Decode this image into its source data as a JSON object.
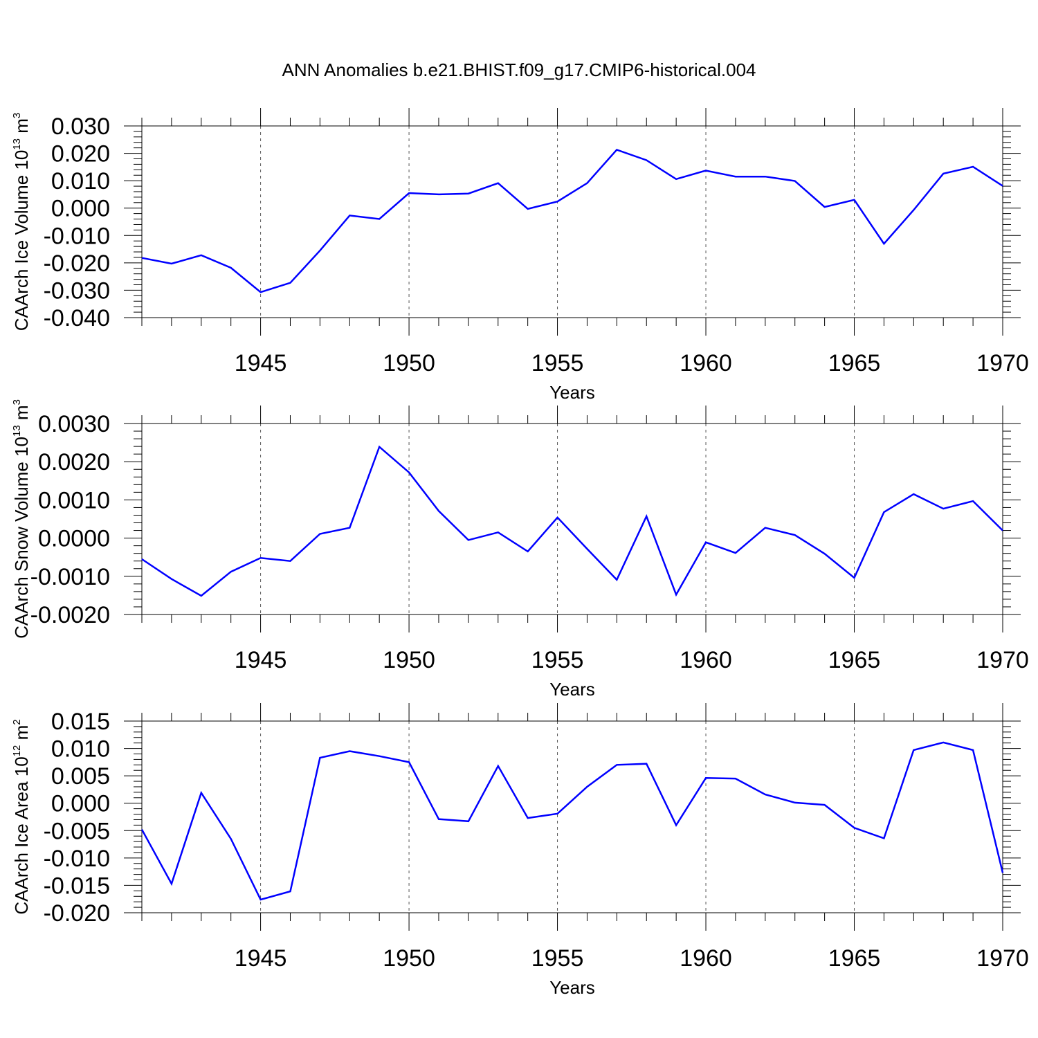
{
  "page_title": "ANN Anomalies b.e21.BHIST.f09_g17.CMIP6-historical.004",
  "colors": {
    "series": "#0000ff",
    "axis": "#000000",
    "grid": "#555555"
  },
  "chart_data": [
    {
      "type": "line",
      "title": "ANN Anomalies b.e21.BHIST.f09_g17.CMIP6-historical.004",
      "ylabel": {
        "main": "CAArch Ice Volume 10",
        "sup": "13",
        "unit": " m",
        "unit_sup": "3"
      },
      "xlabel": "Years",
      "xlim": [
        1941,
        1970
      ],
      "ylim": [
        -0.04,
        0.03
      ],
      "yticks": [
        -0.04,
        -0.03,
        -0.02,
        -0.01,
        0.0,
        0.01,
        0.02,
        0.03
      ],
      "ytick_labels": [
        "-0.040",
        "-0.030",
        "-0.020",
        "-0.010",
        "0.000",
        "0.010",
        "0.020",
        "0.030"
      ],
      "xticks": [
        1945,
        1950,
        1955,
        1960,
        1965,
        1970
      ],
      "xtick_labels": [
        "1945",
        "1950",
        "1955",
        "1960",
        "1965",
        "1970"
      ],
      "grid": "vertical dashed at major x ticks",
      "x": [
        1941,
        1942,
        1943,
        1944,
        1945,
        1946,
        1947,
        1948,
        1949,
        1950,
        1951,
        1952,
        1953,
        1954,
        1955,
        1956,
        1957,
        1958,
        1959,
        1960,
        1961,
        1962,
        1963,
        1964,
        1965,
        1966,
        1967,
        1968,
        1969,
        1970
      ],
      "values": [
        -0.0182,
        -0.0203,
        -0.0172,
        -0.0218,
        -0.0307,
        -0.0273,
        -0.0155,
        -0.0027,
        -0.004,
        0.0055,
        0.005,
        0.0053,
        0.0091,
        -0.0003,
        0.0024,
        0.0091,
        0.0213,
        0.0175,
        0.0106,
        0.0137,
        0.0115,
        0.0115,
        0.0099,
        0.0004,
        0.003,
        -0.013,
        -0.0007,
        0.0126,
        0.0151,
        0.0081
      ]
    },
    {
      "type": "line",
      "ylabel": {
        "main": "CAArch Snow Volume 10",
        "sup": "13",
        "unit": " m",
        "unit_sup": "3"
      },
      "xlabel": "Years",
      "xlim": [
        1941,
        1970
      ],
      "ylim": [
        -0.002,
        0.003
      ],
      "yticks": [
        -0.002,
        -0.001,
        0.0,
        0.001,
        0.002,
        0.003
      ],
      "ytick_labels": [
        "-0.0020",
        "-0.0010",
        "0.0000",
        "0.0010",
        "0.0020",
        "0.0030"
      ],
      "xticks": [
        1945,
        1950,
        1955,
        1960,
        1965,
        1970
      ],
      "xtick_labels": [
        "1945",
        "1950",
        "1955",
        "1960",
        "1965",
        "1970"
      ],
      "grid": "vertical dashed at major x ticks",
      "x": [
        1941,
        1942,
        1943,
        1944,
        1945,
        1946,
        1947,
        1948,
        1949,
        1950,
        1951,
        1952,
        1953,
        1954,
        1955,
        1956,
        1957,
        1958,
        1959,
        1960,
        1961,
        1962,
        1963,
        1964,
        1965,
        1966,
        1967,
        1968,
        1969,
        1970
      ],
      "values": [
        -0.00055,
        -0.00107,
        -0.00151,
        -0.00088,
        -0.00052,
        -0.0006,
        0.00011,
        0.00027,
        0.00239,
        0.00172,
        0.00071,
        -5e-05,
        0.00015,
        -0.00035,
        0.00054,
        -0.00028,
        -0.00109,
        0.00057,
        -0.00148,
        -0.00011,
        -0.00039,
        0.00027,
        8e-05,
        -0.00041,
        -0.00104,
        0.00068,
        0.00115,
        0.00077,
        0.00097,
        0.0002
      ]
    },
    {
      "type": "line",
      "ylabel": {
        "main": "CAArch Ice Area 10",
        "sup": "12",
        "unit": " m",
        "unit_sup": "2"
      },
      "xlabel": "Years",
      "xlim": [
        1941,
        1970
      ],
      "ylim": [
        -0.02,
        0.015
      ],
      "yticks": [
        -0.02,
        -0.015,
        -0.01,
        -0.005,
        0.0,
        0.005,
        0.01,
        0.015
      ],
      "ytick_labels": [
        "-0.020",
        "-0.015",
        "-0.010",
        "-0.005",
        "0.000",
        "0.005",
        "0.010",
        "0.015"
      ],
      "xticks": [
        1945,
        1950,
        1955,
        1960,
        1965,
        1970
      ],
      "xtick_labels": [
        "1945",
        "1950",
        "1955",
        "1960",
        "1965",
        "1970"
      ],
      "grid": "vertical dashed at major x ticks",
      "x": [
        1941,
        1942,
        1943,
        1944,
        1945,
        1946,
        1947,
        1948,
        1949,
        1950,
        1951,
        1952,
        1953,
        1954,
        1955,
        1956,
        1957,
        1958,
        1959,
        1960,
        1961,
        1962,
        1963,
        1964,
        1965,
        1966,
        1967,
        1968,
        1969,
        1970
      ],
      "values": [
        -0.0048,
        -0.0147,
        0.0019,
        -0.0065,
        -0.0176,
        -0.0161,
        0.0083,
        0.0095,
        0.0086,
        0.0075,
        -0.0029,
        -0.0033,
        0.0068,
        -0.0027,
        -0.0019,
        0.003,
        0.007,
        0.0072,
        -0.004,
        0.0046,
        0.0045,
        0.0016,
        0.0001,
        -0.0003,
        -0.0045,
        -0.0064,
        0.0097,
        0.0111,
        0.0097,
        -0.0127
      ]
    }
  ]
}
